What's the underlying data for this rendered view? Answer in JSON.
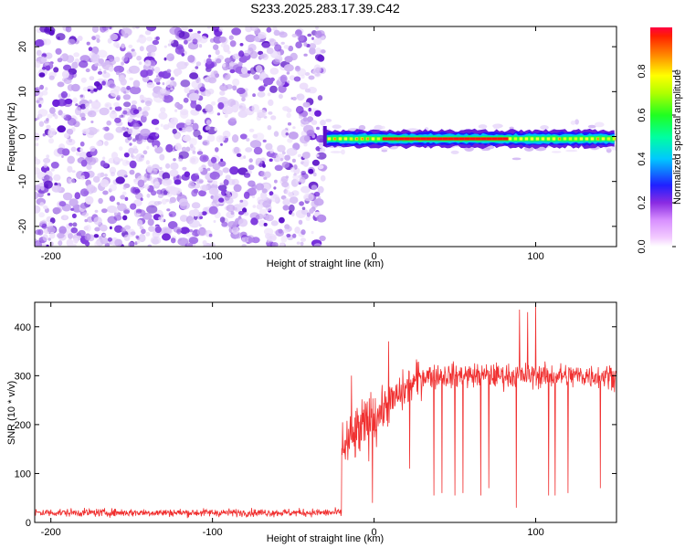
{
  "title": "S233.2025.283.17.39.C42",
  "chart_data": [
    {
      "type": "heatmap",
      "title": "S233.2025.283.17.39.C42",
      "xlabel": "Height of straight line (km)",
      "ylabel": "Frequency (Hz)",
      "xlim": [
        -210,
        150
      ],
      "ylim": [
        -24.5,
        24.5
      ],
      "xticks": [
        -200,
        -100,
        0,
        100
      ],
      "yticks": [
        -20,
        -10,
        0,
        10,
        20
      ],
      "colorbar": {
        "label": "Normalized spectral amplitude",
        "range": [
          0,
          1
        ],
        "ticks": [
          0.0,
          0.2,
          0.4,
          0.6,
          0.8
        ]
      },
      "noise_region_x": [
        -210,
        -31
      ],
      "signal_band": {
        "x_start": -31,
        "x_end": 150,
        "center_frequency_hz": -0.5,
        "peak_segment_x": [
          5,
          80
        ],
        "peak_amplitude": 1.0,
        "typical_amplitude": 0.6
      }
    },
    {
      "type": "line",
      "xlabel": "Height of straight line (km)",
      "ylabel": "SNR (10 * v/v)",
      "xlim": [
        -210,
        150
      ],
      "ylim": [
        0,
        450
      ],
      "xticks": [
        -200,
        -100,
        0,
        100
      ],
      "yticks": [
        0,
        100,
        200,
        300,
        400
      ],
      "series": [
        {
          "name": "SNR",
          "color": "#f03030",
          "segments": [
            {
              "x_range": [
                -210,
                -20
              ],
              "mean": 20,
              "spread": 8
            },
            {
              "x_range": [
                -20,
                5
              ],
              "mean_start": 150,
              "mean_end": 230,
              "spread": 60
            },
            {
              "x_range": [
                5,
                30
              ],
              "mean_start": 230,
              "mean_end": 300,
              "spread": 40
            },
            {
              "x_range": [
                30,
                150
              ],
              "mean": 300,
              "spread": 25
            }
          ],
          "dropouts": [
            {
              "x": -1,
              "y": 40
            },
            {
              "x": 22,
              "y": 110
            },
            {
              "x": 37,
              "y": 55
            },
            {
              "x": 42,
              "y": 60
            },
            {
              "x": 50,
              "y": 55
            },
            {
              "x": 55,
              "y": 60
            },
            {
              "x": 66,
              "y": 55
            },
            {
              "x": 71,
              "y": 70
            },
            {
              "x": 88,
              "y": 30
            },
            {
              "x": 95,
              "y": 35
            },
            {
              "x": 100,
              "y": 35
            },
            {
              "x": 108,
              "y": 55
            },
            {
              "x": 112,
              "y": 55
            },
            {
              "x": 120,
              "y": 60
            },
            {
              "x": 140,
              "y": 70
            }
          ],
          "spikes": [
            {
              "x": -14,
              "y": 300
            },
            {
              "x": 9,
              "y": 370
            },
            {
              "x": 90,
              "y": 435
            },
            {
              "x": 95,
              "y": 430
            },
            {
              "x": 100,
              "y": 450
            }
          ]
        }
      ]
    }
  ],
  "colors": {
    "noise_light": "#d6c5f2",
    "noise_dark": "#6a1fd9",
    "line": "#f03030"
  }
}
